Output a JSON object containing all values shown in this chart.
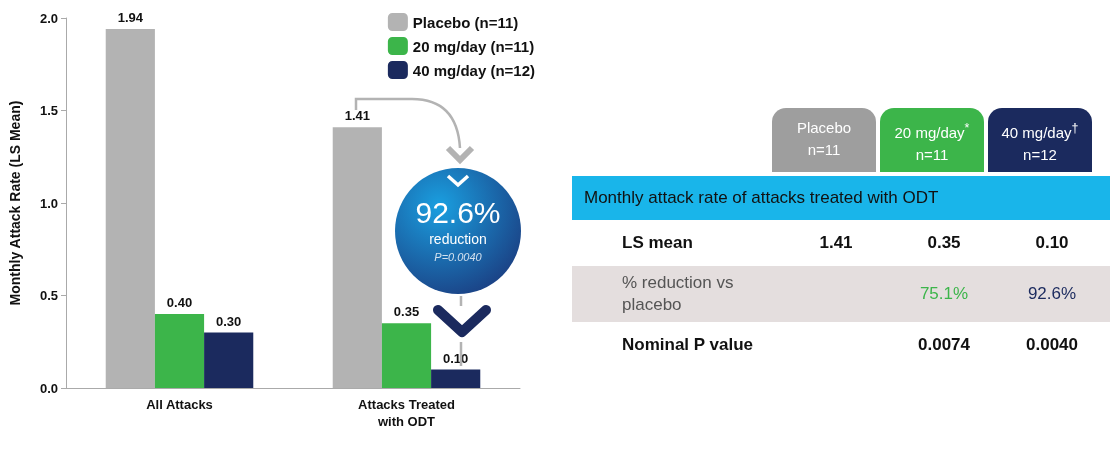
{
  "chart_data": [
    {
      "type": "bar",
      "ylabel": "Monthly Attack Rate (LS Mean)",
      "categories": [
        "All Attacks",
        "Attacks Treated\nwith ODT"
      ],
      "series": [
        {
          "name": "Placebo (n=11)",
          "color": "#b3b3b3",
          "values": [
            1.94,
            1.41
          ],
          "value_labels": [
            "1.94",
            "1.41"
          ]
        },
        {
          "name": "20 mg/day (n=11)",
          "color": "#3cb54a",
          "values": [
            0.4,
            0.35
          ],
          "value_labels": [
            "0.40",
            "0.35"
          ]
        },
        {
          "name": "40 mg/day (n=12)",
          "color": "#1b2a5e",
          "values": [
            0.3,
            0.1
          ],
          "value_labels": [
            "0.30",
            "0.10"
          ]
        }
      ],
      "ylim": [
        0,
        2
      ],
      "yticks": [
        {
          "value": 0,
          "label": "0.0"
        },
        {
          "value": 0.5,
          "label": "0.5"
        },
        {
          "value": 1,
          "label": "1.0"
        },
        {
          "value": 1.5,
          "label": "1.5"
        },
        {
          "value": 2,
          "label": "2.0"
        }
      ],
      "legend": "top right",
      "grid": false,
      "annotations": [
        "92.6%",
        "reduction",
        "P=0.0040"
      ]
    },
    {
      "type": "other",
      "title": "Monthly attack rate of attacks treated with ODT",
      "categories": [
        "Placebo\nn=11",
        "20 mg/day$^{*}$\nn=11",
        "40 mg/day$^{†}$\nn=12"
      ],
      "colors": [
        "#9e9e9e",
        "#3cb54a",
        "#1b2a5e"
      ],
      "y_categories": [
        "LS mean",
        "% reduction vs placebo",
        "Nominal P value"
      ],
      "cell_labels": [
        [
          "1.41",
          "0.35",
          "0.10"
        ],
        [
          null,
          "75.1%",
          "92.6%"
        ],
        [
          null,
          "0.0074",
          "0.0040"
        ]
      ]
    }
  ]
}
